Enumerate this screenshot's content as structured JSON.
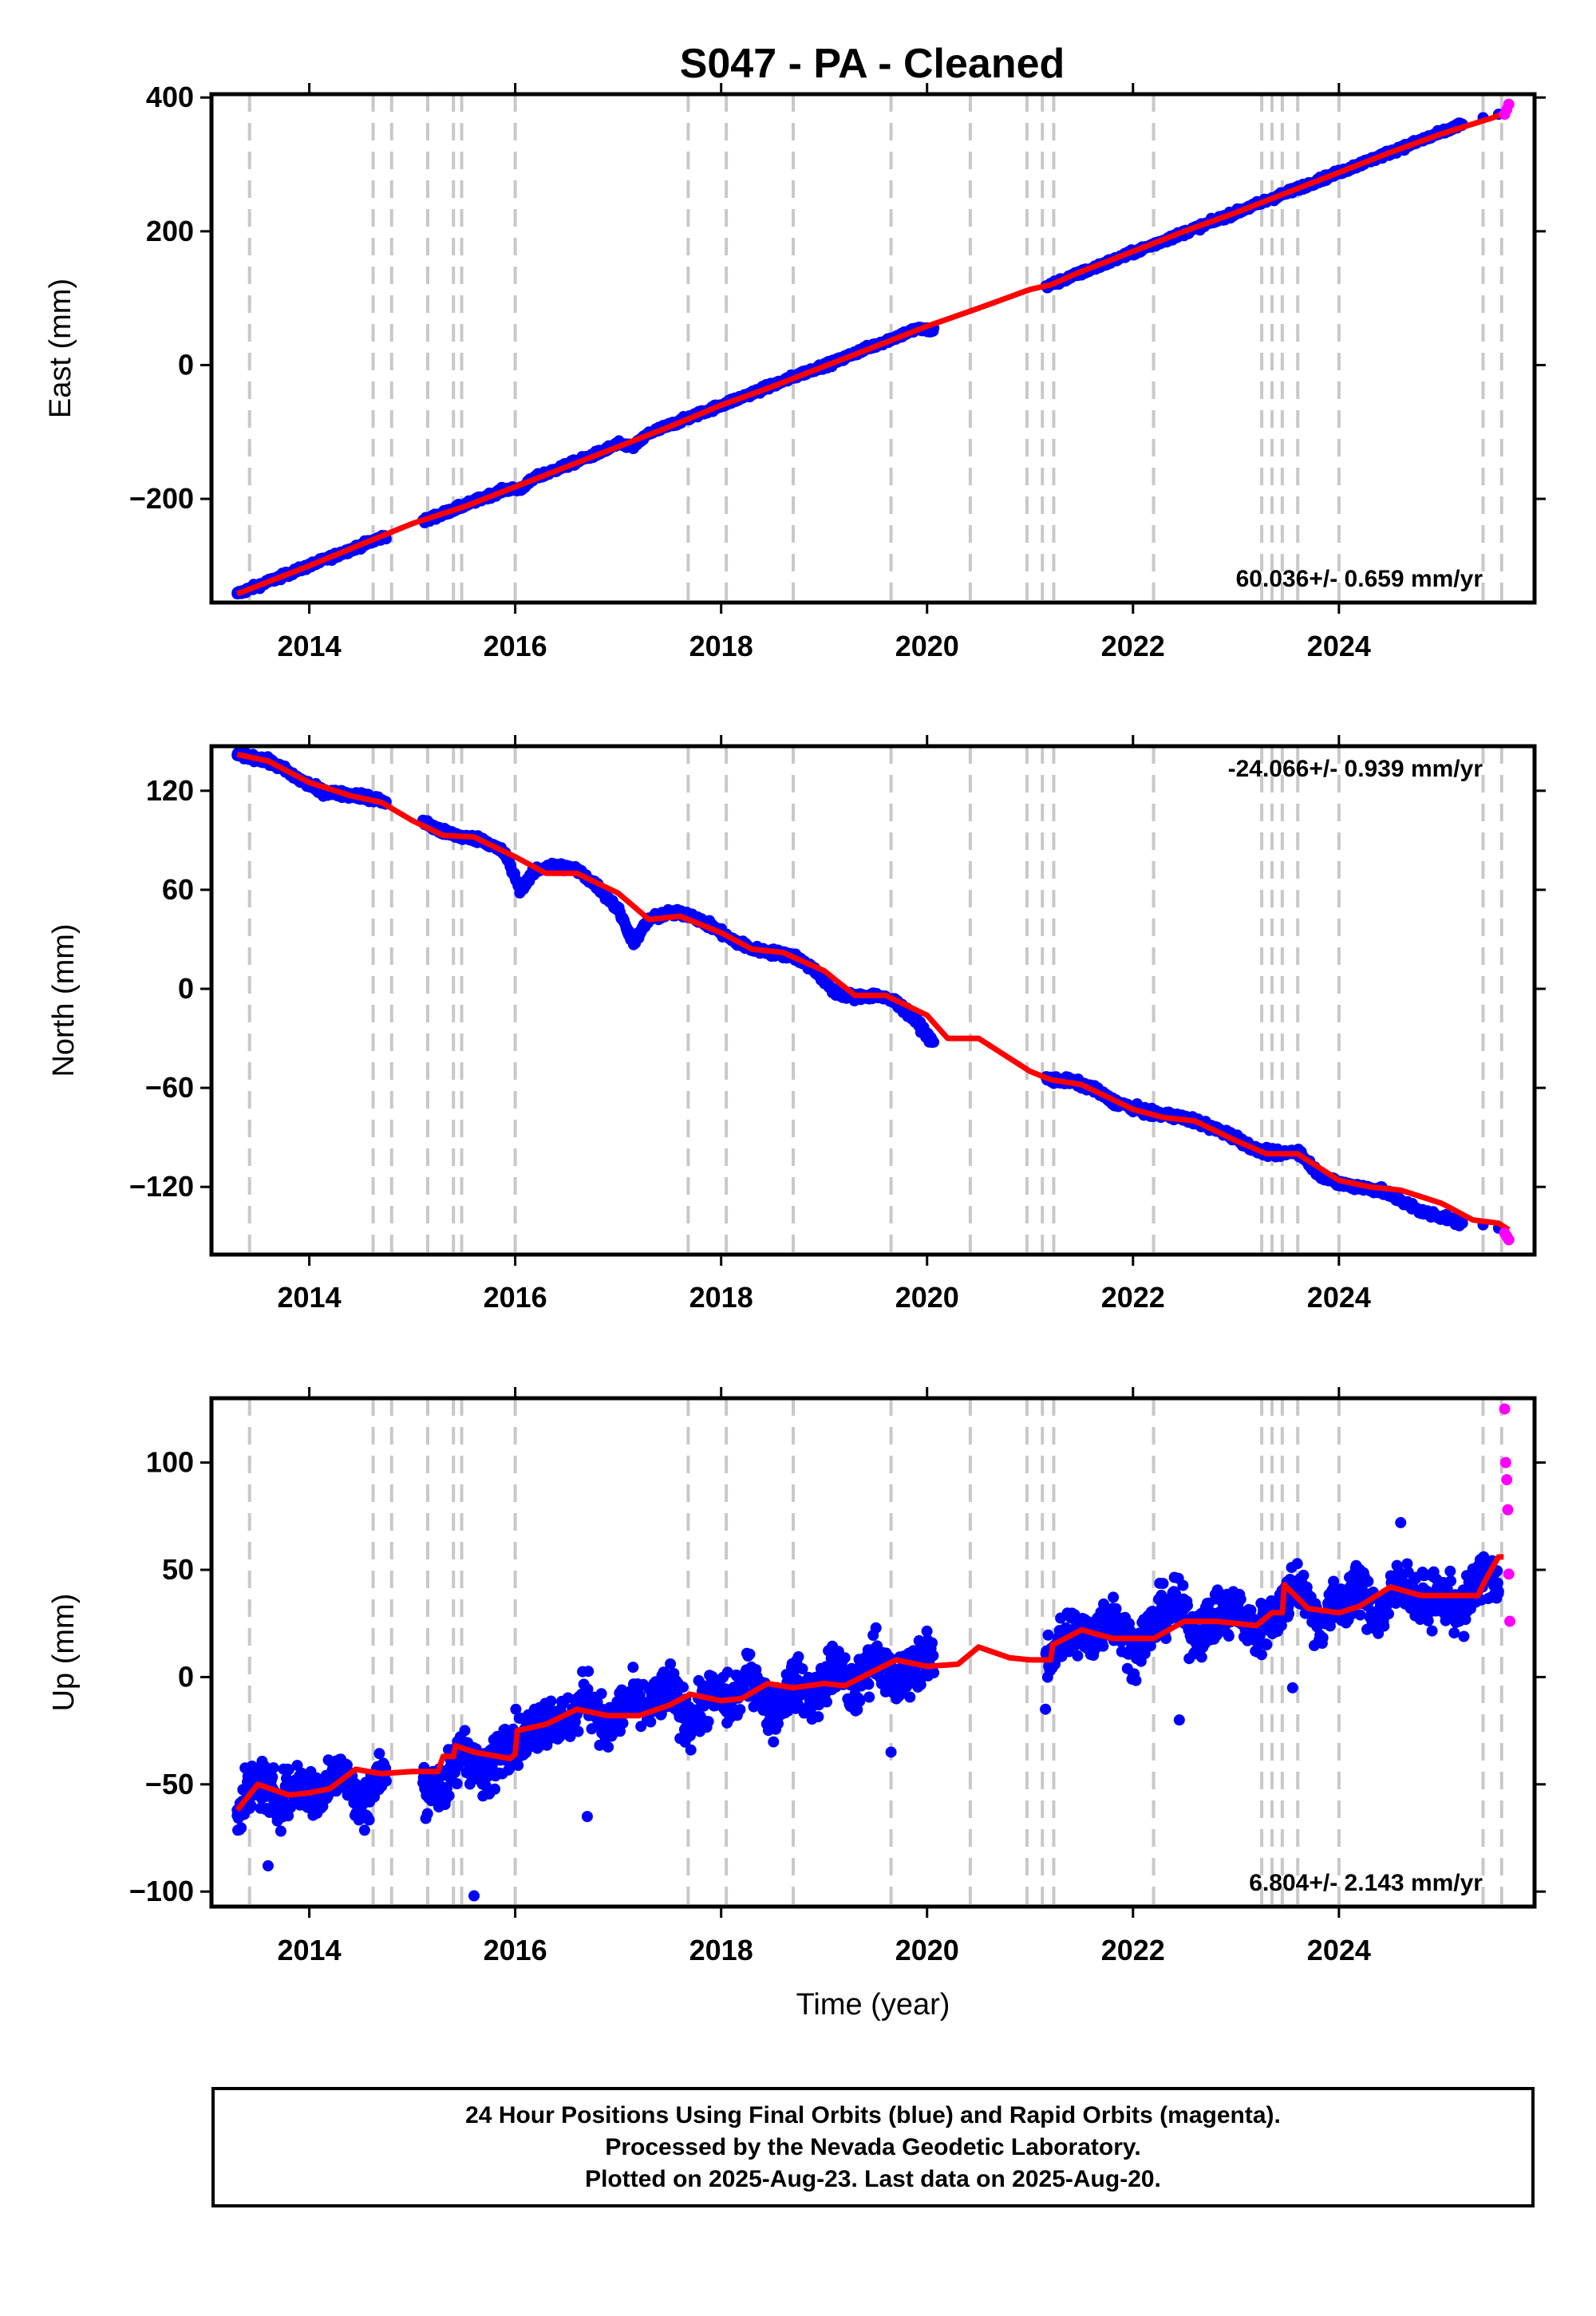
{
  "chart_data": [
    {
      "type": "scatter",
      "title": "S047  - PA - Cleaned",
      "ylabel": "East (mm)",
      "xlabel": "",
      "xlim": [
        2013.05,
        2025.9
      ],
      "ylim": [
        -355,
        405
      ],
      "yticks": [
        400,
        200,
        0,
        -200
      ],
      "ytick_labels": [
        "400",
        "200",
        "0",
        "−200"
      ],
      "xticks": [
        2014,
        2016,
        2018,
        2020,
        2022,
        2024
      ],
      "rate_label": "60.036+/- 0.659 mm/yr",
      "rate_position": "bottom-right",
      "grid": false,
      "series": [
        {
          "name": "Final Orbits",
          "color": "#0000ff",
          "kind": "points",
          "x": [
            2013.3,
            2013.5,
            2013.7,
            2013.9,
            2014.1,
            2014.3,
            2014.5,
            2014.7,
            2015.3,
            2015.5,
            2015.7,
            2015.9,
            2016.05,
            2016.2,
            2016.4,
            2016.6,
            2016.8,
            2017.0,
            2017.15,
            2017.3,
            2017.5,
            2017.7,
            2017.9,
            2018.1,
            2018.3,
            2018.5,
            2018.7,
            2018.9,
            2019.1,
            2019.3,
            2019.5,
            2019.7,
            2019.9,
            2020.05,
            2021.2,
            2021.4,
            2021.6,
            2021.8,
            2022.0,
            2022.2,
            2022.4,
            2022.6,
            2022.8,
            2023.0,
            2023.2,
            2023.4,
            2023.6,
            2023.8,
            2024.0,
            2024.2,
            2024.4,
            2024.6,
            2024.8,
            2025.0,
            2025.2,
            2025.4,
            2025.55
          ],
          "y": [
            -342,
            -330,
            -318,
            -306,
            -294,
            -282,
            -270,
            -258,
            -222,
            -210,
            -198,
            -186,
            -185,
            -168,
            -156,
            -144,
            -132,
            -118,
            -122,
            -102,
            -90,
            -78,
            -66,
            -54,
            -42,
            -30,
            -18,
            -6,
            4,
            18,
            30,
            42,
            54,
            52,
            120,
            132,
            144,
            156,
            168,
            180,
            192,
            204,
            216,
            228,
            240,
            252,
            264,
            276,
            288,
            300,
            312,
            324,
            336,
            348,
            360,
            370,
            375
          ]
        },
        {
          "name": "Rapid Orbits",
          "color": "#ff00ff",
          "kind": "points",
          "x": [
            2025.61,
            2025.63,
            2025.65
          ],
          "y": [
            375,
            382,
            390
          ]
        },
        {
          "name": "Model",
          "color": "#ff0000",
          "kind": "line",
          "x": [
            2013.3,
            2014.0,
            2014.6,
            2015.0,
            2015.5,
            2016.0,
            2016.5,
            2017.0,
            2017.5,
            2018.0,
            2018.5,
            2019.0,
            2019.5,
            2020.0,
            2020.5,
            2021.0,
            2021.2,
            2021.5,
            2022.0,
            2022.5,
            2023.0,
            2023.5,
            2024.0,
            2024.5,
            2025.0,
            2025.5,
            2025.65
          ],
          "y": [
            -342,
            -300,
            -262,
            -237,
            -212,
            -182,
            -152,
            -122,
            -92,
            -60,
            -32,
            -2,
            28,
            58,
            85,
            113,
            120,
            140,
            170,
            200,
            228,
            258,
            288,
            318,
            346,
            370,
            380
          ]
        }
      ],
      "event_lines": [
        2013.42,
        2014.62,
        2014.8,
        2015.15,
        2015.4,
        2015.48,
        2016.0,
        2017.68,
        2018.05,
        2018.7,
        2019.65,
        2020.42,
        2020.97,
        2021.12,
        2021.23,
        2022.2,
        2023.25,
        2023.35,
        2023.45,
        2023.6,
        2024.0,
        2025.4,
        2025.58
      ]
    },
    {
      "type": "scatter",
      "ylabel": "North (mm)",
      "xlabel": "",
      "xlim": [
        2013.05,
        2025.9
      ],
      "ylim": [
        -161,
        147
      ],
      "yticks": [
        120,
        60,
        0,
        -60,
        -120
      ],
      "ytick_labels": [
        "120",
        "60",
        "0",
        "−60",
        "−120"
      ],
      "xticks": [
        2014,
        2016,
        2018,
        2020,
        2022,
        2024
      ],
      "rate_label": "-24.066+/- 0.939 mm/yr",
      "rate_position": "top-right",
      "grid": false,
      "series": [
        {
          "name": "Final Orbits",
          "color": "#0000ff",
          "kind": "points",
          "x": [
            2013.3,
            2013.5,
            2013.7,
            2013.9,
            2014.1,
            2014.3,
            2014.5,
            2014.7,
            2015.3,
            2015.5,
            2015.7,
            2015.9,
            2016.05,
            2016.2,
            2016.4,
            2016.6,
            2016.8,
            2017.0,
            2017.15,
            2017.3,
            2017.5,
            2017.7,
            2017.9,
            2018.1,
            2018.3,
            2018.5,
            2018.7,
            2018.9,
            2019.1,
            2019.3,
            2019.5,
            2019.7,
            2019.9,
            2020.05,
            2021.2,
            2021.4,
            2021.6,
            2021.8,
            2022.0,
            2022.2,
            2022.4,
            2022.6,
            2022.8,
            2023.0,
            2023.2,
            2023.4,
            2023.6,
            2023.8,
            2024.0,
            2024.2,
            2024.4,
            2024.6,
            2024.8,
            2025.0,
            2025.2,
            2025.4,
            2025.55
          ],
          "y": [
            142,
            140,
            135,
            127,
            120,
            118,
            117,
            114,
            95,
            92,
            90,
            82,
            60,
            72,
            75,
            72,
            62,
            48,
            28,
            42,
            46,
            45,
            38,
            30,
            24,
            22,
            20,
            12,
            -2,
            -5,
            -4,
            -8,
            -20,
            -32,
            -55,
            -56,
            -60,
            -68,
            -72,
            -76,
            -77,
            -80,
            -85,
            -90,
            -98,
            -100,
            -98,
            -112,
            -118,
            -120,
            -122,
            -128,
            -135,
            -138,
            -142,
            -143,
            -145
          ]
        },
        {
          "name": "Rapid Orbits",
          "color": "#ff00ff",
          "kind": "points",
          "x": [
            2025.61,
            2025.63,
            2025.65
          ],
          "y": [
            -148,
            -150,
            -152
          ]
        },
        {
          "name": "Model",
          "color": "#ff0000",
          "kind": "line",
          "x": [
            2013.3,
            2013.6,
            2014.0,
            2014.4,
            2014.7,
            2015.0,
            2015.3,
            2015.6,
            2016.0,
            2016.3,
            2016.6,
            2017.0,
            2017.3,
            2017.6,
            2018.0,
            2018.3,
            2018.6,
            2019.0,
            2019.3,
            2019.6,
            2020.0,
            2020.2,
            2020.5,
            2021.0,
            2021.2,
            2021.5,
            2022.0,
            2022.3,
            2022.6,
            2023.0,
            2023.3,
            2023.6,
            2024.0,
            2024.3,
            2024.6,
            2025.0,
            2025.3,
            2025.55,
            2025.65
          ],
          "y": [
            142,
            138,
            125,
            117,
            113,
            102,
            93,
            92,
            80,
            70,
            70,
            58,
            42,
            44,
            34,
            24,
            22,
            11,
            -4,
            -4,
            -16,
            -30,
            -30,
            -50,
            -55,
            -58,
            -73,
            -78,
            -80,
            -92,
            -100,
            -100,
            -116,
            -120,
            -122,
            -130,
            -140,
            -142,
            -146
          ]
        }
      ],
      "event_lines": [
        2013.42,
        2014.62,
        2014.8,
        2015.15,
        2015.4,
        2015.48,
        2016.0,
        2017.68,
        2018.05,
        2018.7,
        2019.65,
        2020.42,
        2020.97,
        2021.12,
        2021.23,
        2022.2,
        2023.25,
        2023.35,
        2023.45,
        2023.6,
        2024.0,
        2025.4,
        2025.58
      ]
    },
    {
      "type": "scatter",
      "ylabel": "Up (mm)",
      "xlabel": "Time (year)",
      "xlim": [
        2013.05,
        2025.9
      ],
      "ylim": [
        -107,
        130
      ],
      "yticks": [
        100,
        50,
        0,
        -50,
        -100
      ],
      "ytick_labels": [
        "100",
        "50",
        "0",
        "−50",
        "−100"
      ],
      "xticks": [
        2014,
        2016,
        2018,
        2020,
        2022,
        2024
      ],
      "rate_label": "6.804+/- 2.143 mm/yr",
      "rate_position": "bottom-right",
      "grid": false,
      "series": [
        {
          "name": "Final Orbits",
          "color": "#0000ff",
          "kind": "points",
          "x": [
            2013.3,
            2013.5,
            2013.7,
            2013.9,
            2014.1,
            2014.3,
            2014.5,
            2014.7,
            2015.3,
            2015.5,
            2015.7,
            2015.9,
            2016.1,
            2016.3,
            2016.5,
            2016.7,
            2016.9,
            2017.1,
            2017.3,
            2017.5,
            2017.7,
            2017.9,
            2018.1,
            2018.3,
            2018.5,
            2018.7,
            2018.9,
            2019.1,
            2019.3,
            2019.5,
            2019.7,
            2019.9,
            2021.2,
            2021.4,
            2021.6,
            2021.8,
            2022.0,
            2022.2,
            2022.4,
            2022.6,
            2022.8,
            2023.0,
            2023.2,
            2023.4,
            2023.6,
            2023.8,
            2024.0,
            2024.2,
            2024.4,
            2024.6,
            2024.8,
            2025.0,
            2025.2,
            2025.4,
            2025.55,
            2013.6,
            2015.6,
            2016.7,
            2019.65,
            2021.15,
            2022.45,
            2023.55,
            2024.6
          ],
          "y": [
            -62,
            -48,
            -58,
            -50,
            -55,
            -40,
            -62,
            -45,
            -52,
            -32,
            -48,
            -30,
            -28,
            -18,
            -22,
            -8,
            -25,
            -10,
            -15,
            -5,
            -22,
            -8,
            -12,
            2,
            -18,
            -2,
            -10,
            5,
            -8,
            12,
            -5,
            8,
            10,
            22,
            18,
            30,
            12,
            25,
            35,
            20,
            28,
            32,
            20,
            30,
            45,
            25,
            35,
            40,
            28,
            45,
            35,
            38,
            30,
            50,
            40,
            -88,
            -102,
            -65,
            -35,
            -15,
            -20,
            -5,
            72
          ],
          "extra": "outliers included"
        },
        {
          "name": "Rapid Orbits",
          "color": "#ff00ff",
          "kind": "points",
          "x": [
            2025.61,
            2025.62,
            2025.63,
            2025.64,
            2025.65,
            2025.66
          ],
          "y": [
            125,
            100,
            92,
            78,
            48,
            26
          ]
        },
        {
          "name": "Model",
          "color": "#ff0000",
          "kind": "line",
          "x": [
            2013.3,
            2013.5,
            2013.8,
            2014.0,
            2014.2,
            2014.45,
            2014.7,
            2015.0,
            2015.25,
            2015.3,
            2015.4,
            2015.42,
            2015.6,
            2015.95,
            2016.0,
            2016.02,
            2016.3,
            2016.6,
            2016.9,
            2017.2,
            2017.5,
            2017.7,
            2018.0,
            2018.2,
            2018.45,
            2018.7,
            2019.0,
            2019.2,
            2019.45,
            2019.7,
            2020.0,
            2020.3,
            2020.5,
            2020.8,
            2021.0,
            2021.2,
            2021.22,
            2021.5,
            2021.8,
            2022.2,
            2022.5,
            2022.8,
            2023.2,
            2023.35,
            2023.45,
            2023.47,
            2023.7,
            2024.0,
            2024.2,
            2024.5,
            2024.8,
            2025.0,
            2025.35,
            2025.42,
            2025.55,
            2025.6
          ],
          "y": [
            -62,
            -50,
            -55,
            -54,
            -52,
            -43,
            -45,
            -44,
            -44,
            -37,
            -37,
            -32,
            -35,
            -38,
            -36,
            -25,
            -22,
            -15,
            -18,
            -18,
            -13,
            -8,
            -11,
            -10,
            -3,
            -5,
            -3,
            -4,
            2,
            8,
            5,
            6,
            14,
            9,
            8,
            8,
            15,
            22,
            18,
            18,
            26,
            26,
            24,
            30,
            30,
            43,
            32,
            30,
            33,
            42,
            38,
            38,
            38,
            45,
            56,
            56
          ]
        }
      ],
      "event_lines": [
        2013.42,
        2014.62,
        2014.8,
        2015.15,
        2015.4,
        2015.48,
        2016.0,
        2017.68,
        2018.05,
        2018.7,
        2019.65,
        2020.42,
        2020.97,
        2021.12,
        2021.23,
        2022.2,
        2023.25,
        2023.35,
        2023.45,
        2023.6,
        2024.0,
        2025.4,
        2025.58
      ]
    }
  ],
  "caption": {
    "line1": "24 Hour Positions Using Final Orbits (blue) and Rapid Orbits (magenta).",
    "line2": "Processed by the Nevada Geodetic Laboratory.",
    "line3": "Plotted on 2025-Aug-23. Last data on 2025-Aug-20."
  }
}
